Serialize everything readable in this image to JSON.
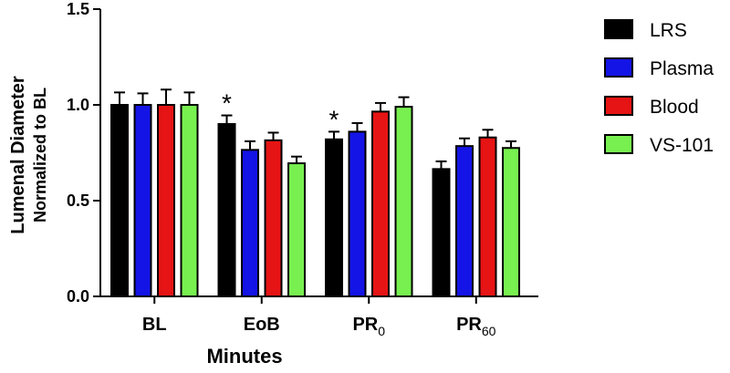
{
  "chart_data": {
    "type": "bar",
    "title": "",
    "xlabel": "Minutes",
    "ylabel_line1": "Lumenal Diameter",
    "ylabel_line2": "Normalized to BL",
    "ylim": [
      0,
      1.5
    ],
    "yticks": [
      "0.0",
      "0.5",
      "1.0",
      "1.5"
    ],
    "ytick_values": [
      0,
      0.5,
      1.0,
      1.5
    ],
    "grid": false,
    "legend_position": "right",
    "categories": [
      {
        "main": "BL",
        "sub": ""
      },
      {
        "main": "EoB",
        "sub": ""
      },
      {
        "main": "PR",
        "sub": "0"
      },
      {
        "main": "PR",
        "sub": "60"
      }
    ],
    "series": [
      {
        "name": "LRS",
        "color": "#000000",
        "values": [
          1.0,
          0.9,
          0.82,
          0.665
        ],
        "errors": [
          0.065,
          0.045,
          0.04,
          0.04
        ]
      },
      {
        "name": "Plasma",
        "color": "#1414e6",
        "values": [
          1.0,
          0.765,
          0.86,
          0.785
        ],
        "errors": [
          0.06,
          0.045,
          0.045,
          0.04
        ]
      },
      {
        "name": "Blood",
        "color": "#e61414",
        "values": [
          1.0,
          0.815,
          0.965,
          0.83
        ],
        "errors": [
          0.08,
          0.04,
          0.045,
          0.04
        ]
      },
      {
        "name": "VS-101",
        "color": "#78f050",
        "values": [
          1.0,
          0.695,
          0.99,
          0.775
        ],
        "errors": [
          0.065,
          0.035,
          0.05,
          0.035
        ]
      }
    ],
    "annotations": [
      {
        "text": "*",
        "category_index": 1,
        "series_index": 0
      },
      {
        "text": "*",
        "category_index": 2,
        "series_index": 0
      }
    ]
  }
}
